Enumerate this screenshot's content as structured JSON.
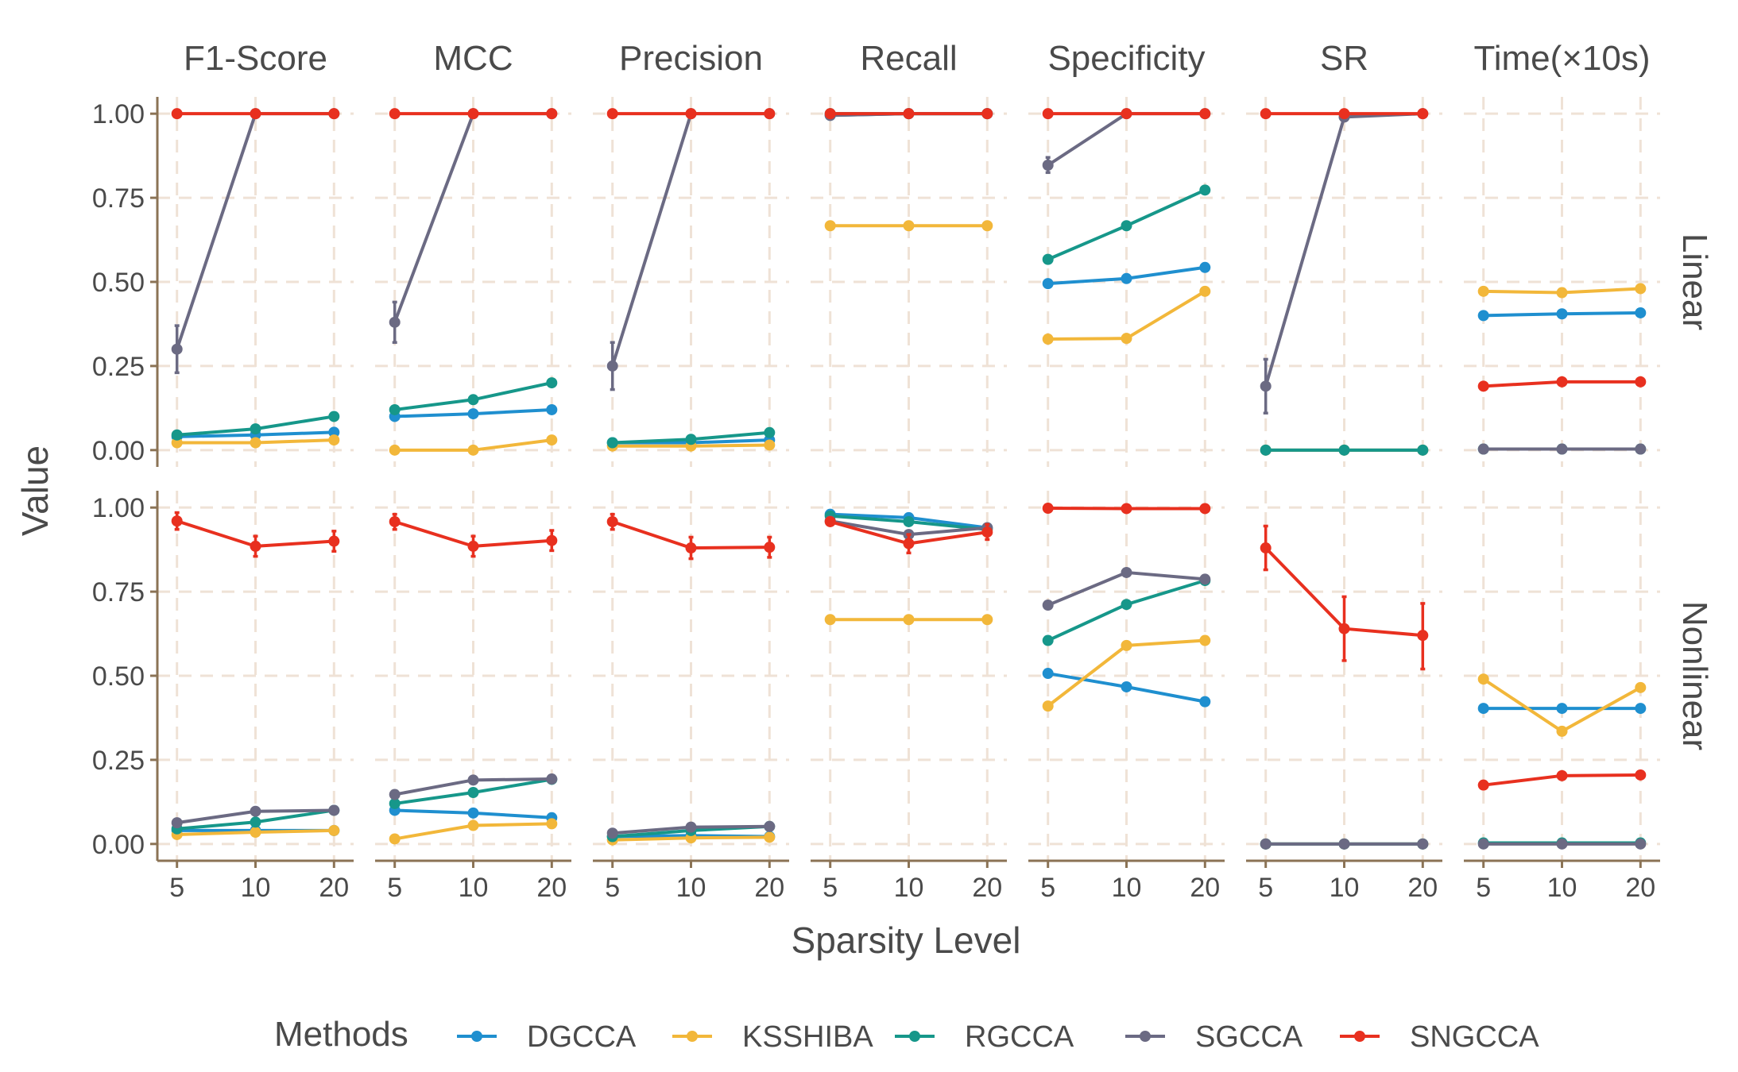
{
  "chart_data": {
    "type": "line",
    "xlabel": "Sparsity Level",
    "ylabel": "Value",
    "x": [
      5,
      10,
      20
    ],
    "xticks": [
      "5",
      "10",
      "20"
    ],
    "ylim": [
      -0.05,
      1.05
    ],
    "yticks": [
      "0.00",
      "0.25",
      "0.50",
      "0.75",
      "1.00"
    ],
    "grid": true,
    "columns": [
      "F1-Score",
      "MCC",
      "Precision",
      "Recall",
      "Specificity",
      "SR",
      "Time(×10s)"
    ],
    "rows": [
      "Linear",
      "Nonlinear"
    ],
    "legend": {
      "title": "Methods",
      "position": "bottom",
      "entries": [
        "DGCCA",
        "KSSHIBA",
        "RGCCA",
        "SGCCA",
        "SNGCCA"
      ]
    },
    "colors": {
      "DGCCA": "#1f8fcf",
      "KSSHIBA": "#f2b73a",
      "RGCCA": "#16978a",
      "SGCCA": "#6b6a83",
      "SNGCCA": "#e8301f"
    },
    "panels": {
      "Linear": {
        "F1-Score": {
          "DGCCA": [
            0.04,
            0.045,
            0.053
          ],
          "KSSHIBA": [
            0.022,
            0.022,
            0.03
          ],
          "RGCCA": [
            0.045,
            0.063,
            0.1
          ],
          "SGCCA": [
            0.3,
            1.0,
            1.0
          ],
          "SNGCCA": [
            1.0,
            1.0,
            1.0
          ]
        },
        "MCC": {
          "DGCCA": [
            0.1,
            0.108,
            0.12
          ],
          "KSSHIBA": [
            0.0,
            0.0,
            0.03
          ],
          "RGCCA": [
            0.12,
            0.15,
            0.2
          ],
          "SGCCA": [
            0.38,
            1.0,
            1.0
          ],
          "SNGCCA": [
            1.0,
            1.0,
            1.0
          ]
        },
        "Precision": {
          "DGCCA": [
            0.022,
            0.022,
            0.03
          ],
          "KSSHIBA": [
            0.012,
            0.012,
            0.015
          ],
          "RGCCA": [
            0.022,
            0.032,
            0.052
          ],
          "SGCCA": [
            0.25,
            1.0,
            1.0
          ],
          "SNGCCA": [
            1.0,
            1.0,
            1.0
          ]
        },
        "Recall": {
          "DGCCA": [
            0.995,
            1.0,
            1.0
          ],
          "KSSHIBA": [
            0.667,
            0.667,
            0.667
          ],
          "RGCCA": [
            1.0,
            1.0,
            1.0
          ],
          "SGCCA": [
            0.995,
            1.0,
            1.0
          ],
          "SNGCCA": [
            1.0,
            1.0,
            1.0
          ]
        },
        "Specificity": {
          "DGCCA": [
            0.495,
            0.51,
            0.543
          ],
          "KSSHIBA": [
            0.33,
            0.332,
            0.472
          ],
          "RGCCA": [
            0.567,
            0.667,
            0.773
          ],
          "SGCCA": [
            0.847,
            1.0,
            1.0
          ],
          "SNGCCA": [
            1.0,
            1.0,
            1.0
          ]
        },
        "SR": {
          "DGCCA": [
            0.0,
            0.0,
            0.0
          ],
          "KSSHIBA": [
            0.0,
            0.0,
            0.0
          ],
          "RGCCA": [
            0.0,
            0.0,
            0.0
          ],
          "SGCCA": [
            0.19,
            0.99,
            1.0
          ],
          "SNGCCA": [
            1.0,
            1.0,
            1.0
          ]
        },
        "Time(×10s)": {
          "DGCCA": [
            0.4,
            0.405,
            0.408
          ],
          "KSSHIBA": [
            0.472,
            0.468,
            0.48
          ],
          "RGCCA": [
            0.003,
            0.003,
            0.003
          ],
          "SGCCA": [
            0.003,
            0.003,
            0.003
          ],
          "SNGCCA": [
            0.19,
            0.203,
            0.203
          ]
        }
      },
      "Nonlinear": {
        "F1-Score": {
          "DGCCA": [
            0.04,
            0.04,
            0.04
          ],
          "KSSHIBA": [
            0.028,
            0.035,
            0.04
          ],
          "RGCCA": [
            0.045,
            0.065,
            0.1
          ],
          "SGCCA": [
            0.063,
            0.097,
            0.1
          ],
          "SNGCCA": [
            0.96,
            0.885,
            0.9
          ]
        },
        "MCC": {
          "DGCCA": [
            0.1,
            0.092,
            0.078
          ],
          "KSSHIBA": [
            0.015,
            0.055,
            0.06
          ],
          "RGCCA": [
            0.12,
            0.153,
            0.192
          ],
          "SGCCA": [
            0.147,
            0.19,
            0.193
          ],
          "SNGCCA": [
            0.958,
            0.885,
            0.902
          ]
        },
        "Precision": {
          "DGCCA": [
            0.022,
            0.025,
            0.022
          ],
          "KSSHIBA": [
            0.012,
            0.018,
            0.02
          ],
          "RGCCA": [
            0.022,
            0.04,
            0.052
          ],
          "SGCCA": [
            0.032,
            0.05,
            0.052
          ],
          "SNGCCA": [
            0.958,
            0.88,
            0.882
          ]
        },
        "Recall": {
          "DGCCA": [
            0.98,
            0.97,
            0.94
          ],
          "KSSHIBA": [
            0.667,
            0.667,
            0.667
          ],
          "RGCCA": [
            0.975,
            0.958,
            0.935
          ],
          "SGCCA": [
            0.96,
            0.92,
            0.94
          ],
          "SNGCCA": [
            0.958,
            0.893,
            0.927
          ]
        },
        "Specificity": {
          "DGCCA": [
            0.507,
            0.467,
            0.423
          ],
          "KSSHIBA": [
            0.41,
            0.59,
            0.605
          ],
          "RGCCA": [
            0.605,
            0.712,
            0.783
          ],
          "SGCCA": [
            0.71,
            0.807,
            0.787
          ],
          "SNGCCA": [
            0.998,
            0.997,
            0.997
          ]
        },
        "SR": {
          "DGCCA": [
            0.0,
            0.0,
            0.0
          ],
          "KSSHIBA": [
            0.0,
            0.0,
            0.0
          ],
          "RGCCA": [
            0.0,
            0.0,
            0.0
          ],
          "SGCCA": [
            0.0,
            0.0,
            0.0
          ],
          "SNGCCA": [
            0.88,
            0.64,
            0.62
          ]
        },
        "Time(×10s)": {
          "DGCCA": [
            0.403,
            0.403,
            0.403
          ],
          "KSSHIBA": [
            0.49,
            0.335,
            0.465
          ],
          "RGCCA": [
            0.003,
            0.003,
            0.003
          ],
          "SGCCA": [
            0.0,
            0.0,
            0.0
          ],
          "SNGCCA": [
            0.175,
            0.203,
            0.205
          ]
        }
      }
    },
    "error_bars": [
      {
        "row": "Linear",
        "column": "F1-Score",
        "method": "SGCCA",
        "x": 5,
        "low": 0.23,
        "high": 0.37
      },
      {
        "row": "Linear",
        "column": "MCC",
        "method": "SGCCA",
        "x": 5,
        "low": 0.32,
        "high": 0.44
      },
      {
        "row": "Linear",
        "column": "Precision",
        "method": "SGCCA",
        "x": 5,
        "low": 0.18,
        "high": 0.32
      },
      {
        "row": "Linear",
        "column": "Specificity",
        "method": "SGCCA",
        "x": 5,
        "low": 0.825,
        "high": 0.87
      },
      {
        "row": "Linear",
        "column": "SR",
        "method": "SGCCA",
        "x": 5,
        "low": 0.11,
        "high": 0.27
      },
      {
        "row": "Nonlinear",
        "column": "F1-Score",
        "method": "SNGCCA",
        "x": 5,
        "low": 0.935,
        "high": 0.985
      },
      {
        "row": "Nonlinear",
        "column": "F1-Score",
        "method": "SNGCCA",
        "x": 10,
        "low": 0.855,
        "high": 0.915
      },
      {
        "row": "Nonlinear",
        "column": "F1-Score",
        "method": "SNGCCA",
        "x": 20,
        "low": 0.87,
        "high": 0.93
      },
      {
        "row": "Nonlinear",
        "column": "MCC",
        "method": "SNGCCA",
        "x": 5,
        "low": 0.935,
        "high": 0.98
      },
      {
        "row": "Nonlinear",
        "column": "MCC",
        "method": "SNGCCA",
        "x": 10,
        "low": 0.855,
        "high": 0.915
      },
      {
        "row": "Nonlinear",
        "column": "MCC",
        "method": "SNGCCA",
        "x": 20,
        "low": 0.872,
        "high": 0.932
      },
      {
        "row": "Nonlinear",
        "column": "Precision",
        "method": "SNGCCA",
        "x": 5,
        "low": 0.935,
        "high": 0.98
      },
      {
        "row": "Nonlinear",
        "column": "Precision",
        "method": "SNGCCA",
        "x": 10,
        "low": 0.848,
        "high": 0.912
      },
      {
        "row": "Nonlinear",
        "column": "Precision",
        "method": "SNGCCA",
        "x": 20,
        "low": 0.852,
        "high": 0.912
      },
      {
        "row": "Nonlinear",
        "column": "Recall",
        "method": "SNGCCA",
        "x": 10,
        "low": 0.865,
        "high": 0.92
      },
      {
        "row": "Nonlinear",
        "column": "Recall",
        "method": "SNGCCA",
        "x": 20,
        "low": 0.905,
        "high": 0.95
      },
      {
        "row": "Nonlinear",
        "column": "SR",
        "method": "SNGCCA",
        "x": 5,
        "low": 0.815,
        "high": 0.945
      },
      {
        "row": "Nonlinear",
        "column": "SR",
        "method": "SNGCCA",
        "x": 10,
        "low": 0.545,
        "high": 0.735
      },
      {
        "row": "Nonlinear",
        "column": "SR",
        "method": "SNGCCA",
        "x": 20,
        "low": 0.52,
        "high": 0.715
      }
    ]
  }
}
